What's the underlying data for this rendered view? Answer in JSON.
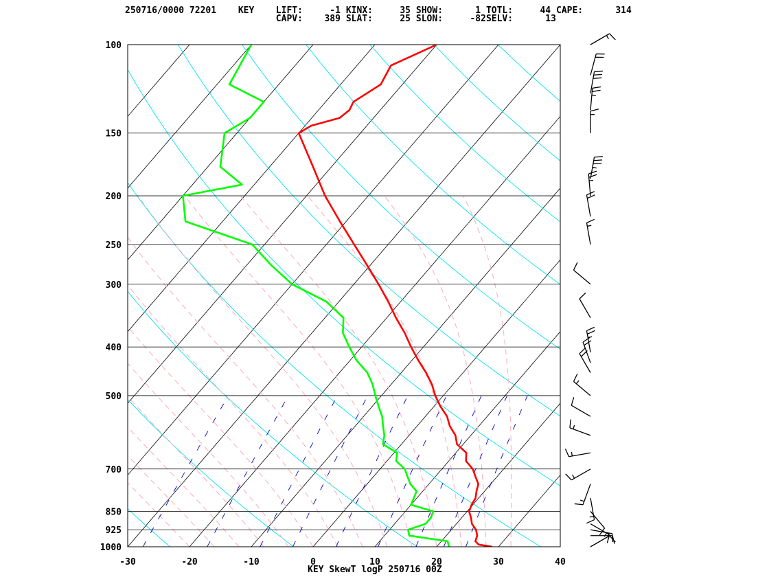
{
  "header": {
    "line1": [
      {
        "text": "250716/0000 72201",
        "col": 0
      },
      {
        "text": "KEY",
        "col": 21
      },
      {
        "text": "LIFT:",
        "col": 28
      },
      {
        "text": "-1",
        "col": 38
      },
      {
        "text": "KINX:",
        "col": 41
      },
      {
        "text": "35",
        "col": 51
      },
      {
        "text": "SHOW:",
        "col": 54
      },
      {
        "text": "1",
        "col": 65
      },
      {
        "text": "TOTL:",
        "col": 67
      },
      {
        "text": "44",
        "col": 77
      },
      {
        "text": "CAPE:",
        "col": 80
      },
      {
        "text": "314",
        "col": 91
      }
    ],
    "line2": [
      {
        "text": "CAPV:",
        "col": 28
      },
      {
        "text": "389",
        "col": 37
      },
      {
        "text": "SLAT:",
        "col": 41
      },
      {
        "text": "25",
        "col": 51
      },
      {
        "text": "SLON:",
        "col": 54
      },
      {
        "text": "-82",
        "col": 64
      },
      {
        "text": "SELV:",
        "col": 67
      },
      {
        "text": "13",
        "col": 78
      }
    ]
  },
  "caption": "KEY SkewT logP 250716 00Z",
  "colors": {
    "temperature": "#ff0000",
    "dewpoint": "#00ff00",
    "isotherm": "#000000",
    "dry_adiabat": "#00e5ee",
    "moist_adiabat": "#ffb6c1",
    "mixing_ratio": "#0000cd",
    "isobar": "#000000",
    "wind_barb": "#000000"
  },
  "chart_data": {
    "type": "skew-T log-P",
    "x_axis": {
      "label": "",
      "ticks": [
        -30,
        -20,
        -10,
        0,
        10,
        20,
        30,
        40
      ],
      "range": [
        -30,
        40
      ],
      "units": "°C"
    },
    "y_axis": {
      "label": "",
      "scale": "log",
      "ticks": [
        100,
        150,
        200,
        250,
        300,
        400,
        500,
        700,
        850,
        925,
        1000
      ],
      "range": [
        1000,
        100
      ],
      "units": "hPa"
    },
    "skew_deg_per_decade": 70,
    "temperature": [
      {
        "p": 1000,
        "t": 29
      },
      {
        "p": 990,
        "t": 26.5
      },
      {
        "p": 975,
        "t": 25.5
      },
      {
        "p": 950,
        "t": 25
      },
      {
        "p": 925,
        "t": 24
      },
      {
        "p": 900,
        "t": 22.5
      },
      {
        "p": 875,
        "t": 21.5
      },
      {
        "p": 850,
        "t": 20.3
      },
      {
        "p": 825,
        "t": 19.8
      },
      {
        "p": 800,
        "t": 19.5
      },
      {
        "p": 775,
        "t": 18.7
      },
      {
        "p": 750,
        "t": 18.0
      },
      {
        "p": 725,
        "t": 16.5
      },
      {
        "p": 700,
        "t": 15.0
      },
      {
        "p": 675,
        "t": 12.8
      },
      {
        "p": 650,
        "t": 11.7
      },
      {
        "p": 625,
        "t": 9.0
      },
      {
        "p": 600,
        "t": 7.5
      },
      {
        "p": 575,
        "t": 5.3
      },
      {
        "p": 550,
        "t": 3.5
      },
      {
        "p": 525,
        "t": 1.0
      },
      {
        "p": 500,
        "t": -1.3
      },
      {
        "p": 475,
        "t": -3.4
      },
      {
        "p": 450,
        "t": -6.0
      },
      {
        "p": 425,
        "t": -9.0
      },
      {
        "p": 400,
        "t": -12.0
      },
      {
        "p": 375,
        "t": -15.0
      },
      {
        "p": 350,
        "t": -18.5
      },
      {
        "p": 325,
        "t": -22.0
      },
      {
        "p": 300,
        "t": -26.0
      },
      {
        "p": 275,
        "t": -30.5
      },
      {
        "p": 250,
        "t": -35.5
      },
      {
        "p": 225,
        "t": -41.0
      },
      {
        "p": 200,
        "t": -47.0
      },
      {
        "p": 175,
        "t": -53.0
      },
      {
        "p": 150,
        "t": -60.0
      },
      {
        "p": 145,
        "t": -59.0
      },
      {
        "p": 140,
        "t": -55.5
      },
      {
        "p": 135,
        "t": -55.0
      },
      {
        "p": 130,
        "t": -55.5
      },
      {
        "p": 120,
        "t": -53.5
      },
      {
        "p": 110,
        "t": -54.5
      },
      {
        "p": 100,
        "t": -50.0
      }
    ],
    "dewpoint": [
      {
        "p": 1000,
        "t": 22
      },
      {
        "p": 975,
        "t": 21
      },
      {
        "p": 950,
        "t": 14
      },
      {
        "p": 925,
        "t": 13
      },
      {
        "p": 900,
        "t": 15
      },
      {
        "p": 875,
        "t": 15
      },
      {
        "p": 850,
        "t": 14.5
      },
      {
        "p": 825,
        "t": 10
      },
      {
        "p": 800,
        "t": 9.5
      },
      {
        "p": 775,
        "t": 9.0
      },
      {
        "p": 750,
        "t": 7.0
      },
      {
        "p": 725,
        "t": 5.5
      },
      {
        "p": 700,
        "t": 4.0
      },
      {
        "p": 675,
        "t": 1.5
      },
      {
        "p": 650,
        "t": 0.5
      },
      {
        "p": 625,
        "t": -3.0
      },
      {
        "p": 600,
        "t": -4.0
      },
      {
        "p": 575,
        "t": -5.5
      },
      {
        "p": 550,
        "t": -7.0
      },
      {
        "p": 525,
        "t": -9.0
      },
      {
        "p": 500,
        "t": -11.0
      },
      {
        "p": 475,
        "t": -13.0
      },
      {
        "p": 450,
        "t": -15.5
      },
      {
        "p": 425,
        "t": -19.0
      },
      {
        "p": 400,
        "t": -22.0
      },
      {
        "p": 375,
        "t": -25.0
      },
      {
        "p": 350,
        "t": -27.0
      },
      {
        "p": 325,
        "t": -32.0
      },
      {
        "p": 300,
        "t": -40.0
      },
      {
        "p": 275,
        "t": -46.0
      },
      {
        "p": 250,
        "t": -52.0
      },
      {
        "p": 225,
        "t": -66.0
      },
      {
        "p": 200,
        "t": -70.0
      },
      {
        "p": 190,
        "t": -62.0
      },
      {
        "p": 175,
        "t": -68.0
      },
      {
        "p": 150,
        "t": -72.0
      },
      {
        "p": 140,
        "t": -70.0
      },
      {
        "p": 130,
        "t": -70.0
      },
      {
        "p": 120,
        "t": -78.0
      },
      {
        "p": 100,
        "t": -80.0
      }
    ],
    "wind": [
      {
        "p": 1000,
        "dir": 60,
        "spd": 10
      },
      {
        "p": 950,
        "dir": 90,
        "spd": 10
      },
      {
        "p": 925,
        "dir": 100,
        "spd": 15
      },
      {
        "p": 900,
        "dir": 120,
        "spd": 15
      },
      {
        "p": 850,
        "dir": 140,
        "spd": 10
      },
      {
        "p": 800,
        "dir": 170,
        "spd": 15
      },
      {
        "p": 750,
        "dir": 200,
        "spd": 15
      },
      {
        "p": 700,
        "dir": 240,
        "spd": 15
      },
      {
        "p": 650,
        "dir": 260,
        "spd": 15
      },
      {
        "p": 600,
        "dir": 290,
        "spd": 15
      },
      {
        "p": 550,
        "dir": 300,
        "spd": 10
      },
      {
        "p": 500,
        "dir": 310,
        "spd": 15
      },
      {
        "p": 450,
        "dir": 330,
        "spd": 20
      },
      {
        "p": 430,
        "dir": 340,
        "spd": 20
      },
      {
        "p": 410,
        "dir": 350,
        "spd": 25
      },
      {
        "p": 350,
        "dir": 330,
        "spd": 10
      },
      {
        "p": 300,
        "dir": 310,
        "spd": 10
      },
      {
        "p": 250,
        "dir": 350,
        "spd": 15
      },
      {
        "p": 220,
        "dir": 350,
        "spd": 20
      },
      {
        "p": 200,
        "dir": 355,
        "spd": 25
      },
      {
        "p": 185,
        "dir": 10,
        "spd": 35
      },
      {
        "p": 150,
        "dir": 0,
        "spd": 15
      },
      {
        "p": 135,
        "dir": 5,
        "spd": 25
      },
      {
        "p": 125,
        "dir": 10,
        "spd": 30
      },
      {
        "p": 115,
        "dir": 15,
        "spd": 20
      },
      {
        "p": 100,
        "dir": 60,
        "spd": 15
      }
    ]
  }
}
